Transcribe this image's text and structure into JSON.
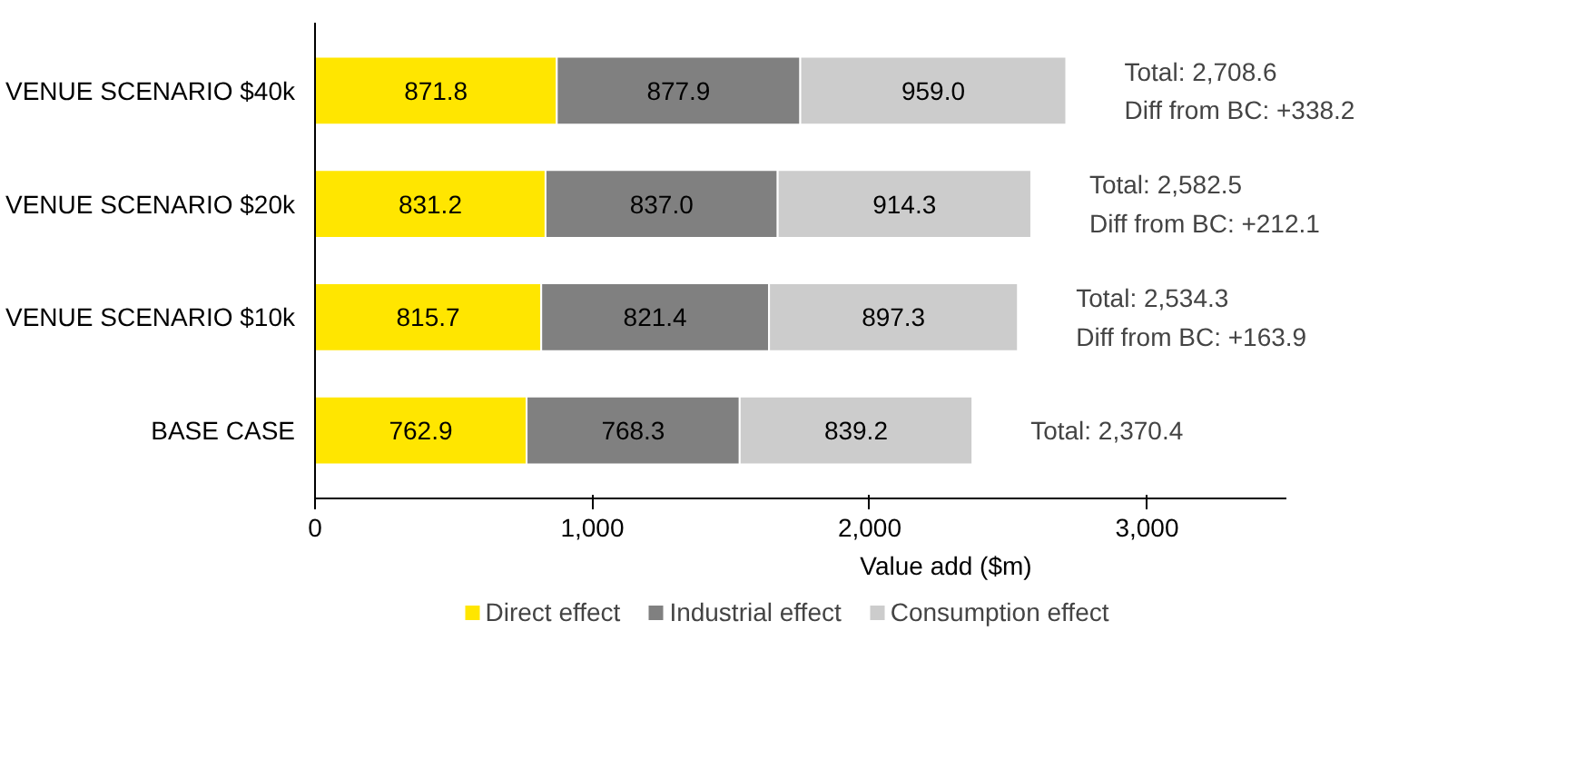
{
  "chart_data": {
    "type": "bar",
    "orientation": "horizontal",
    "stacked": true,
    "xlabel": "Value add ($m)",
    "categories": [
      "VENUE SCENARIO $40k",
      "VENUE SCENARIO $20k",
      "VENUE SCENARIO $10k",
      "BASE CASE"
    ],
    "series": [
      {
        "name": "Direct effect",
        "color": "#ffe600",
        "values": [
          871.8,
          831.2,
          815.7,
          762.9
        ],
        "value_labels": [
          "871.8",
          "831.2",
          "815.7",
          "762.9"
        ]
      },
      {
        "name": "Industrial effect",
        "color": "#808080",
        "values": [
          877.9,
          837.0,
          821.4,
          768.3
        ],
        "value_labels": [
          "877.9",
          "837.0",
          "821.4",
          "768.3"
        ]
      },
      {
        "name": "Consumption effect",
        "color": "#cccccc",
        "values": [
          959.0,
          914.3,
          897.3,
          839.2
        ],
        "value_labels": [
          "959.0",
          "914.3",
          "897.3",
          "839.2"
        ]
      }
    ],
    "totals": [
      "Total: 2,708.6",
      "Total: 2,582.5",
      "Total: 2,534.3",
      "Total: 2,370.4"
    ],
    "annotations": [
      {
        "text": "Diff from BC: +338.2",
        "x": 2708.6,
        "y": "VENUE SCENARIO $40k"
      },
      {
        "text": "Diff from BC: +212.1",
        "x": 2582.5,
        "y": "VENUE SCENARIO $20k"
      },
      {
        "text": "Diff from BC: +163.9",
        "x": 2534.3,
        "y": "VENUE SCENARIO $10k"
      }
    ],
    "xlim": [
      0,
      3500
    ],
    "xticks": [
      0,
      {
        "value": 1000,
        "label": "1,000"
      },
      {
        "value": 2000,
        "label": "2,000"
      },
      {
        "value": 3000,
        "label": "3,000"
      }
    ],
    "grid": false,
    "legend": "bottom"
  }
}
